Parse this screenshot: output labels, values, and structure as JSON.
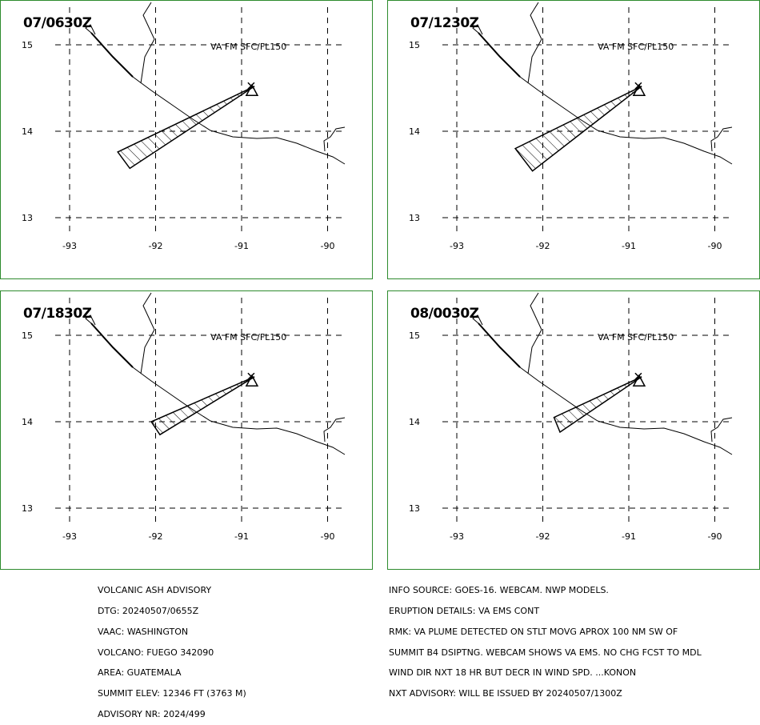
{
  "panels": [
    {
      "time": "07/0630Z",
      "label": "VA FM SFC/FL150",
      "plume": [
        [
          -90.85,
          14.52
        ],
        [
          -92.3,
          13.57
        ],
        [
          -92.44,
          13.76
        ]
      ]
    },
    {
      "time": "07/1230Z",
      "label": "VA FM SFC/FL150",
      "plume": [
        [
          -90.85,
          14.52
        ],
        [
          -92.12,
          13.54
        ],
        [
          -92.32,
          13.8
        ]
      ]
    },
    {
      "time": "07/1830Z",
      "label": "VA FM SFC/FL150",
      "plume": [
        [
          -90.85,
          14.52
        ],
        [
          -91.95,
          13.85
        ],
        [
          -92.05,
          14.0
        ]
      ]
    },
    {
      "time": "08/0030Z",
      "label": "VA FM SFC/FL150",
      "plume": [
        [
          -90.85,
          14.52
        ],
        [
          -91.8,
          13.88
        ],
        [
          -91.87,
          14.05
        ]
      ]
    }
  ],
  "axes": {
    "lon_ticks": [
      "-93",
      "-92",
      "-91",
      "-90"
    ],
    "lat_ticks": [
      "15",
      "14",
      "13"
    ]
  },
  "volcano": {
    "lon": -90.88,
    "lat": 14.47,
    "marker": "volcano-triangle-icon"
  },
  "advisory_left": [
    "VOLCANIC ASH ADVISORY",
    "DTG: 20240507/0655Z",
    "VAAC: WASHINGTON",
    "VOLCANO: FUEGO 342090",
    "AREA: GUATEMALA",
    "SUMMIT ELEV: 12346 FT (3763 M)",
    "ADVISORY NR: 2024/499"
  ],
  "advisory_right": [
    "INFO SOURCE: GOES-16. WEBCAM. NWP MODELS.",
    "ERUPTION DETAILS: VA EMS CONT",
    "RMK: VA PLUME DETECTED ON STLT MOVG APROX 100 NM SW OF",
    "SUMMIT B4 DSIPTNG. WEBCAM SHOWS VA EMS. NO CHG FCST TO MDL",
    "WIND DIR NXT 18 HR BUT DECR IN WIND SPD. ...KONON",
    "NXT ADVISORY: WILL BE ISSUED BY 20240507/1300Z"
  ],
  "colors": {
    "frame": "#2e8b2e",
    "ink": "#000000"
  }
}
